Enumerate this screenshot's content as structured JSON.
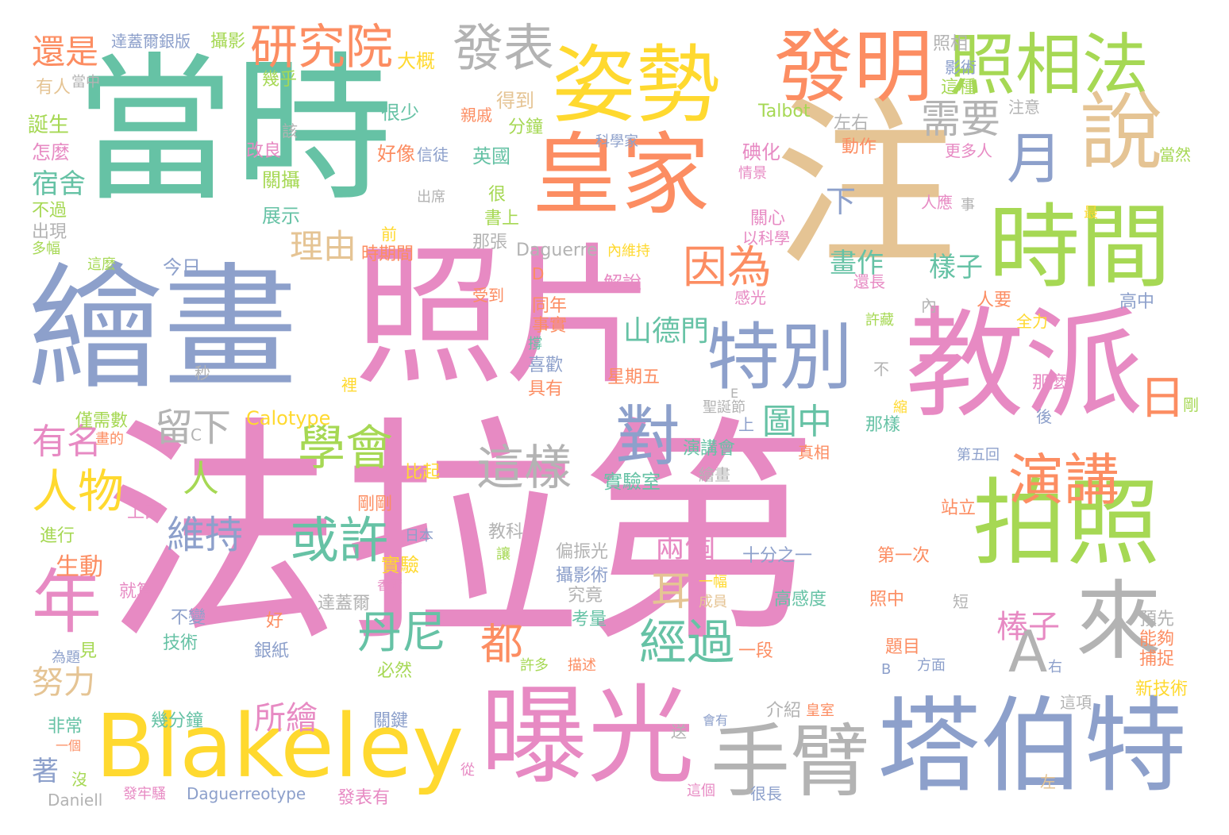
{
  "palette": {
    "pink": "#e78ac3",
    "green": "#66c2a5",
    "blue": "#8da0cb",
    "orange": "#fc8d62",
    "lime": "#a6d854",
    "yellow": "#ffd92f",
    "tan": "#e5c494",
    "gray": "#b3b3b3"
  },
  "words": [
    {
      "text": "法拉第",
      "color": "pink"
    },
    {
      "text": "當時",
      "color": "green"
    },
    {
      "text": "注",
      "color": "tan"
    },
    {
      "text": "照片",
      "color": "pink"
    },
    {
      "text": "繪畫",
      "color": "blue"
    },
    {
      "text": "教派",
      "color": "pink"
    },
    {
      "text": "皇家",
      "color": "orange"
    },
    {
      "text": "姿勢",
      "color": "yellow"
    },
    {
      "text": "發明",
      "color": "orange"
    },
    {
      "text": "時間",
      "color": "lime"
    },
    {
      "text": "照相法",
      "color": "lime"
    },
    {
      "text": "說",
      "color": "tan"
    },
    {
      "text": "拍照",
      "color": "lime"
    },
    {
      "text": "塔伯特",
      "color": "blue"
    },
    {
      "text": "曝光",
      "color": "pink"
    },
    {
      "text": "Blakeley",
      "color": "yellow"
    },
    {
      "text": "手臂",
      "color": "gray"
    },
    {
      "text": "來",
      "color": "gray"
    },
    {
      "text": "A",
      "color": "gray"
    },
    {
      "text": "特別",
      "color": "blue"
    },
    {
      "text": "演講",
      "color": "orange"
    },
    {
      "text": "日",
      "color": "orange"
    },
    {
      "text": "年",
      "color": "pink"
    },
    {
      "text": "對",
      "color": "blue"
    },
    {
      "text": "月",
      "color": "blue"
    },
    {
      "text": "研究院",
      "color": "orange"
    },
    {
      "text": "發表",
      "color": "gray"
    },
    {
      "text": "需要",
      "color": "gray"
    },
    {
      "text": "因為",
      "color": "orange"
    },
    {
      "text": "學會",
      "color": "lime"
    },
    {
      "text": "這樣",
      "color": "gray"
    },
    {
      "text": "或許",
      "color": "green"
    },
    {
      "text": "丹尼",
      "color": "green"
    },
    {
      "text": "經過",
      "color": "green"
    },
    {
      "text": "人物",
      "color": "yellow"
    },
    {
      "text": "維持",
      "color": "blue"
    },
    {
      "text": "圖中",
      "color": "green"
    },
    {
      "text": "留下",
      "color": "gray"
    },
    {
      "text": "有名",
      "color": "pink"
    },
    {
      "text": "兩個",
      "color": "pink"
    },
    {
      "text": "棒子",
      "color": "pink"
    },
    {
      "text": "努力",
      "color": "tan"
    },
    {
      "text": "都",
      "color": "orange"
    },
    {
      "text": "耳",
      "color": "tan"
    },
    {
      "text": "理由",
      "color": "tan"
    },
    {
      "text": "所繪",
      "color": "pink"
    },
    {
      "text": "還是",
      "color": "orange"
    },
    {
      "text": "宿舍",
      "color": "green"
    },
    {
      "text": "山德門",
      "color": "green"
    },
    {
      "text": "畫作",
      "color": "green"
    },
    {
      "text": "樣子",
      "color": "green"
    },
    {
      "text": "人",
      "color": "lime"
    },
    {
      "text": "下",
      "color": "blue"
    },
    {
      "text": "著",
      "color": "blue"
    },
    {
      "text": "生動",
      "color": "orange"
    },
    {
      "text": "達蓋爾銀版",
      "color": "blue"
    },
    {
      "text": "攝影",
      "color": "lime"
    },
    {
      "text": "大概",
      "color": "yellow"
    },
    {
      "text": "幾乎",
      "color": "lime"
    },
    {
      "text": "有人",
      "color": "tan"
    },
    {
      "text": "當中",
      "color": "gray"
    },
    {
      "text": "誕生",
      "color": "lime"
    },
    {
      "text": "怎麼",
      "color": "pink"
    },
    {
      "text": "很少",
      "color": "green"
    },
    {
      "text": "得到",
      "color": "tan"
    },
    {
      "text": "親戚",
      "color": "orange"
    },
    {
      "text": "分鐘",
      "color": "lime"
    },
    {
      "text": "該",
      "color": "gray"
    },
    {
      "text": "照相",
      "color": "gray"
    },
    {
      "text": "影術",
      "color": "blue"
    },
    {
      "text": "這種",
      "color": "lime"
    },
    {
      "text": "注意",
      "color": "gray"
    },
    {
      "text": "Talbot",
      "color": "lime"
    },
    {
      "text": "左右",
      "color": "gray"
    },
    {
      "text": "更多人",
      "color": "pink"
    },
    {
      "text": "動作",
      "color": "orange"
    },
    {
      "text": "碘化",
      "color": "pink"
    },
    {
      "text": "情景",
      "color": "pink"
    },
    {
      "text": "當然",
      "color": "lime"
    },
    {
      "text": "改良",
      "color": "pink"
    },
    {
      "text": "好像",
      "color": "orange"
    },
    {
      "text": "信徒",
      "color": "blue"
    },
    {
      "text": "英國",
      "color": "green"
    },
    {
      "text": "科學家",
      "color": "blue"
    },
    {
      "text": "關攝",
      "color": "lime"
    },
    {
      "text": "很",
      "color": "lime"
    },
    {
      "text": "不過",
      "color": "lime"
    },
    {
      "text": "出席",
      "color": "gray"
    },
    {
      "text": "書上",
      "color": "lime"
    },
    {
      "text": "展示",
      "color": "green"
    },
    {
      "text": "出現",
      "color": "gray"
    },
    {
      "text": "多幅",
      "color": "lime"
    },
    {
      "text": "那張",
      "color": "gray"
    },
    {
      "text": "前",
      "color": "yellow"
    },
    {
      "text": "人應",
      "color": "pink"
    },
    {
      "text": "事",
      "color": "gray"
    },
    {
      "text": "最",
      "color": "yellow"
    },
    {
      "text": "關心",
      "color": "pink"
    },
    {
      "text": "以科學",
      "color": "pink"
    },
    {
      "text": "內維持",
      "color": "yellow"
    },
    {
      "text": "Daguerre",
      "color": "gray"
    },
    {
      "text": "時期間",
      "color": "orange"
    },
    {
      "text": "這麼",
      "color": "lime"
    },
    {
      "text": "今日",
      "color": "blue"
    },
    {
      "text": "D",
      "color": "orange"
    },
    {
      "text": "解說",
      "color": "pink"
    },
    {
      "text": "還長",
      "color": "pink"
    },
    {
      "text": "許藏",
      "color": "lime"
    },
    {
      "text": "受到",
      "color": "orange"
    },
    {
      "text": "同年",
      "color": "orange"
    },
    {
      "text": "事實",
      "color": "orange"
    },
    {
      "text": "感光",
      "color": "pink"
    },
    {
      "text": "內",
      "color": "gray"
    },
    {
      "text": "人要",
      "color": "orange"
    },
    {
      "text": "高中",
      "color": "blue"
    },
    {
      "text": "全力",
      "color": "yellow"
    },
    {
      "text": "撐",
      "color": "green"
    },
    {
      "text": "喜歡",
      "color": "blue"
    },
    {
      "text": "秒",
      "color": "gray"
    },
    {
      "text": "星期五",
      "color": "orange"
    },
    {
      "text": "不",
      "color": "gray"
    },
    {
      "text": "裡",
      "color": "yellow"
    },
    {
      "text": "具有",
      "color": "orange"
    },
    {
      "text": "E",
      "color": "gray"
    },
    {
      "text": "那麼",
      "color": "pink"
    },
    {
      "text": "僅需數",
      "color": "lime"
    },
    {
      "text": "Calotype",
      "color": "yellow"
    },
    {
      "text": "C",
      "color": "gray"
    },
    {
      "text": "聖誕節",
      "color": "gray"
    },
    {
      "text": "縮",
      "color": "yellow"
    },
    {
      "text": "剛",
      "color": "lime"
    },
    {
      "text": "後",
      "color": "blue"
    },
    {
      "text": "畫的",
      "color": "orange"
    },
    {
      "text": "上",
      "color": "blue"
    },
    {
      "text": "那樣",
      "color": "green"
    },
    {
      "text": "真相",
      "color": "orange"
    },
    {
      "text": "演講會",
      "color": "green"
    },
    {
      "text": "繪畫",
      "color": "gray"
    },
    {
      "text": "實驗室",
      "color": "green"
    },
    {
      "text": "第五回",
      "color": "blue"
    },
    {
      "text": "比起",
      "color": "yellow"
    },
    {
      "text": "上面",
      "color": "pink"
    },
    {
      "text": "剛剛",
      "color": "orange"
    },
    {
      "text": "站立",
      "color": "orange"
    },
    {
      "text": "進行",
      "color": "lime"
    },
    {
      "text": "日本",
      "color": "blue"
    },
    {
      "text": "教科",
      "color": "gray"
    },
    {
      "text": "讓",
      "color": "lime"
    },
    {
      "text": "偏振光",
      "color": "gray"
    },
    {
      "text": "十分之一",
      "color": "blue"
    },
    {
      "text": "第一次",
      "color": "orange"
    },
    {
      "text": "實驗",
      "color": "yellow"
    },
    {
      "text": "攝影術",
      "color": "blue"
    },
    {
      "text": "就算",
      "color": "pink"
    },
    {
      "text": "一幅",
      "color": "yellow"
    },
    {
      "text": "香爾",
      "color": "pink"
    },
    {
      "text": "究竟",
      "color": "gray"
    },
    {
      "text": "高感度",
      "color": "green"
    },
    {
      "text": "照中",
      "color": "orange"
    },
    {
      "text": "短",
      "color": "gray"
    },
    {
      "text": "成員",
      "color": "tan"
    },
    {
      "text": "達蓋爾",
      "color": "gray"
    },
    {
      "text": "不變",
      "color": "blue"
    },
    {
      "text": "考量",
      "color": "green"
    },
    {
      "text": "好",
      "color": "orange"
    },
    {
      "text": "預先",
      "color": "gray"
    },
    {
      "text": "技術",
      "color": "green"
    },
    {
      "text": "見",
      "color": "lime"
    },
    {
      "text": "為題",
      "color": "blue"
    },
    {
      "text": "銀紙",
      "color": "blue"
    },
    {
      "text": "一段",
      "color": "orange"
    },
    {
      "text": "題目",
      "color": "orange"
    },
    {
      "text": "能夠",
      "color": "orange"
    },
    {
      "text": "捕捉",
      "color": "orange"
    },
    {
      "text": "必然",
      "color": "lime"
    },
    {
      "text": "許多",
      "color": "lime"
    },
    {
      "text": "描述",
      "color": "orange"
    },
    {
      "text": "B",
      "color": "blue"
    },
    {
      "text": "方面",
      "color": "blue"
    },
    {
      "text": "右",
      "color": "blue"
    },
    {
      "text": "新技術",
      "color": "yellow"
    },
    {
      "text": "這項",
      "color": "gray"
    },
    {
      "text": "非常",
      "color": "green"
    },
    {
      "text": "幾分鐘",
      "color": "green"
    },
    {
      "text": "關鍵",
      "color": "blue"
    },
    {
      "text": "送",
      "color": "gray"
    },
    {
      "text": "介紹",
      "color": "gray"
    },
    {
      "text": "皇室",
      "color": "orange"
    },
    {
      "text": "會有",
      "color": "blue"
    },
    {
      "text": "一個",
      "color": "orange"
    },
    {
      "text": "沒",
      "color": "lime"
    },
    {
      "text": "從",
      "color": "pink"
    },
    {
      "text": "左",
      "color": "tan"
    },
    {
      "text": "Daniell",
      "color": "gray"
    },
    {
      "text": "發牢騷",
      "color": "pink"
    },
    {
      "text": "Daguerreotype",
      "color": "blue"
    },
    {
      "text": "發表有",
      "color": "pink"
    },
    {
      "text": "這個",
      "color": "pink"
    },
    {
      "text": "很長",
      "color": "blue"
    }
  ]
}
